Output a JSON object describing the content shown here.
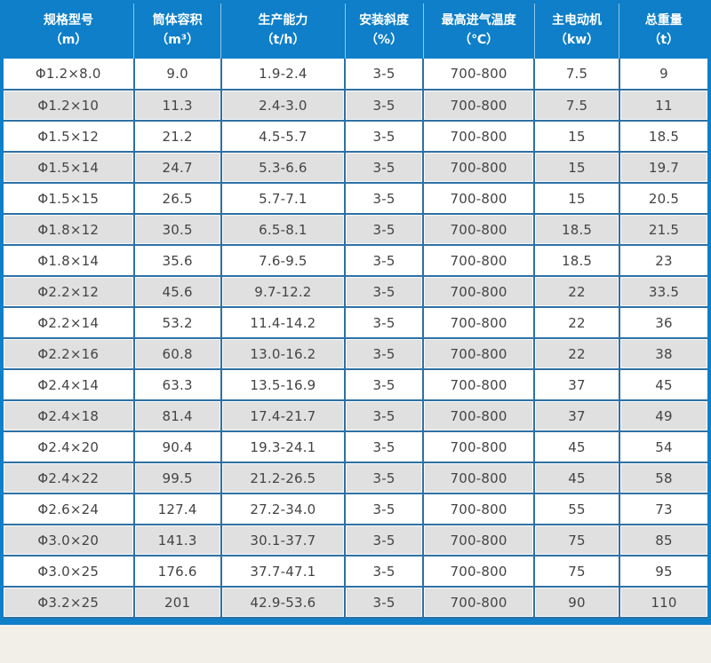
{
  "colors": {
    "header_bg": "#0e7fc8",
    "grid_border": "#2e71a4",
    "alt_row_bg": "#e0e0e0",
    "row_bg": "#ffffff",
    "header_text": "#ffffff",
    "cell_text": "#444444",
    "page_bg": "#f2efe9"
  },
  "chart_data": {
    "type": "table",
    "title": "",
    "headers": [
      {
        "line1": "规格型号",
        "line2": "（m）"
      },
      {
        "line1": "筒体容积",
        "line2": "（m³）"
      },
      {
        "line1": "生产能力",
        "line2": "（t/h）"
      },
      {
        "line1": "安装斜度",
        "line2": "（%）"
      },
      {
        "line1": "最高进气温度",
        "line2": "（℃）"
      },
      {
        "line1": "主电动机",
        "line2": "（kw）"
      },
      {
        "line1": "总重量",
        "line2": "（t）"
      }
    ],
    "rows": [
      [
        "Φ1.2×8.0",
        "9.0",
        "1.9-2.4",
        "3-5",
        "700-800",
        "7.5",
        "9"
      ],
      [
        "Φ1.2×10",
        "11.3",
        "2.4-3.0",
        "3-5",
        "700-800",
        "7.5",
        "11"
      ],
      [
        "Φ1.5×12",
        "21.2",
        "4.5-5.7",
        "3-5",
        "700-800",
        "15",
        "18.5"
      ],
      [
        "Φ1.5×14",
        "24.7",
        "5.3-6.6",
        "3-5",
        "700-800",
        "15",
        "19.7"
      ],
      [
        "Φ1.5×15",
        "26.5",
        "5.7-7.1",
        "3-5",
        "700-800",
        "15",
        "20.5"
      ],
      [
        "Φ1.8×12",
        "30.5",
        "6.5-8.1",
        "3-5",
        "700-800",
        "18.5",
        "21.5"
      ],
      [
        "Φ1.8×14",
        "35.6",
        "7.6-9.5",
        "3-5",
        "700-800",
        "18.5",
        "23"
      ],
      [
        "Φ2.2×12",
        "45.6",
        "9.7-12.2",
        "3-5",
        "700-800",
        "22",
        "33.5"
      ],
      [
        "Φ2.2×14",
        "53.2",
        "11.4-14.2",
        "3-5",
        "700-800",
        "22",
        "36"
      ],
      [
        "Φ2.2×16",
        "60.8",
        "13.0-16.2",
        "3-5",
        "700-800",
        "22",
        "38"
      ],
      [
        "Φ2.4×14",
        "63.3",
        "13.5-16.9",
        "3-5",
        "700-800",
        "37",
        "45"
      ],
      [
        "Φ2.4×18",
        "81.4",
        "17.4-21.7",
        "3-5",
        "700-800",
        "37",
        "49"
      ],
      [
        "Φ2.4×20",
        "90.4",
        "19.3-24.1",
        "3-5",
        "700-800",
        "45",
        "54"
      ],
      [
        "Φ2.4×22",
        "99.5",
        "21.2-26.5",
        "3-5",
        "700-800",
        "45",
        "58"
      ],
      [
        "Φ2.6×24",
        "127.4",
        "27.2-34.0",
        "3-5",
        "700-800",
        "55",
        "73"
      ],
      [
        "Φ3.0×20",
        "141.3",
        "30.1-37.7",
        "3-5",
        "700-800",
        "75",
        "85"
      ],
      [
        "Φ3.0×25",
        "176.6",
        "37.7-47.1",
        "3-5",
        "700-800",
        "75",
        "95"
      ],
      [
        "Φ3.2×25",
        "201",
        "42.9-53.6",
        "3-5",
        "700-800",
        "90",
        "110"
      ]
    ],
    "column_widths_pct": [
      18.5,
      12.4,
      17.6,
      11.1,
      15.8,
      12.1,
      12.5
    ],
    "layout_hints": {
      "alternating_rows": true,
      "grid": true,
      "header_position": "top"
    }
  }
}
